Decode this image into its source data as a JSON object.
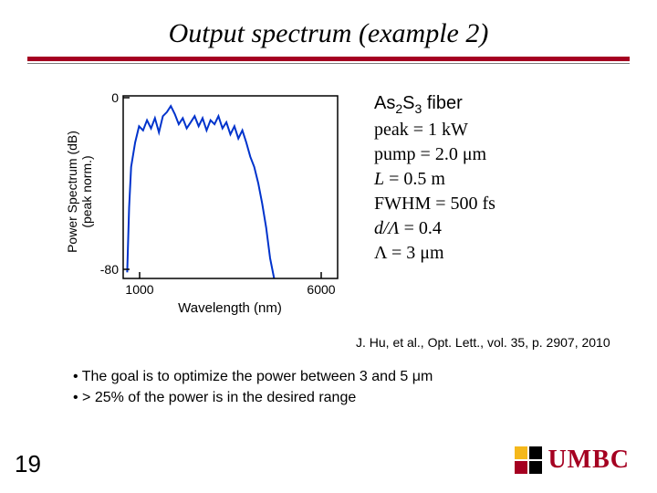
{
  "title": "Output spectrum (example 2)",
  "chart": {
    "type": "line",
    "xlabel": "Wavelength (nm)",
    "ylabel_line1": "Power Spectrum (dB)",
    "ylabel_line2": "(peak norm.)",
    "xlim": [
      800,
      6200
    ],
    "ylim": [
      -85,
      5
    ],
    "xticks": [
      1000,
      6000
    ],
    "yticks": [
      0,
      -80
    ],
    "line_color": "#0033cc",
    "line_width": 2,
    "axis_color": "#000000",
    "background_color": "#ffffff",
    "label_fontsize": 14,
    "tick_fontsize": 12,
    "data": [
      [
        900,
        -82
      ],
      [
        950,
        -50
      ],
      [
        1000,
        -30
      ],
      [
        1100,
        -18
      ],
      [
        1200,
        -10
      ],
      [
        1300,
        -12
      ],
      [
        1400,
        -7
      ],
      [
        1500,
        -11
      ],
      [
        1600,
        -6
      ],
      [
        1700,
        -13
      ],
      [
        1800,
        -5
      ],
      [
        1900,
        -3
      ],
      [
        2000,
        0
      ],
      [
        2100,
        -4
      ],
      [
        2200,
        -9
      ],
      [
        2300,
        -6
      ],
      [
        2400,
        -11
      ],
      [
        2500,
        -8
      ],
      [
        2600,
        -5
      ],
      [
        2700,
        -10
      ],
      [
        2800,
        -6
      ],
      [
        2900,
        -12
      ],
      [
        3000,
        -7
      ],
      [
        3100,
        -9
      ],
      [
        3200,
        -5
      ],
      [
        3300,
        -11
      ],
      [
        3400,
        -8
      ],
      [
        3500,
        -14
      ],
      [
        3600,
        -10
      ],
      [
        3700,
        -16
      ],
      [
        3800,
        -12
      ],
      [
        3900,
        -18
      ],
      [
        4000,
        -25
      ],
      [
        4100,
        -30
      ],
      [
        4200,
        -38
      ],
      [
        4300,
        -48
      ],
      [
        4400,
        -60
      ],
      [
        4500,
        -75
      ],
      [
        4600,
        -85
      ]
    ]
  },
  "params": {
    "material_prefix": "As",
    "material_sub1": "2",
    "material_mid": "S",
    "material_sub2": "3",
    "material_suffix": " fiber",
    "peak": "peak = 1 kW",
    "pump": "pump = 2.0 μm",
    "length_label": "L",
    "length_value": " = 0.5 m",
    "fwhm": "FWHM = 500 fs",
    "ratio_label": "d/Λ",
    "ratio_value": " = 0.4",
    "lambda_label": "Λ",
    "lambda_value": " = 3 μm"
  },
  "citation": "J. Hu, et al., Opt. Lett., vol. 35, p. 2907, 2010",
  "bullets": {
    "b1": "• The goal is to optimize the power between 3 and 5 μm",
    "b2": "• > 25% of the power is in the desired range"
  },
  "slide_number": "19",
  "logo": {
    "text": "UMBC",
    "colors": {
      "yellow": "#f5b81b",
      "red": "#a50021",
      "black": "#000000"
    }
  },
  "accent_color": "#a50021"
}
